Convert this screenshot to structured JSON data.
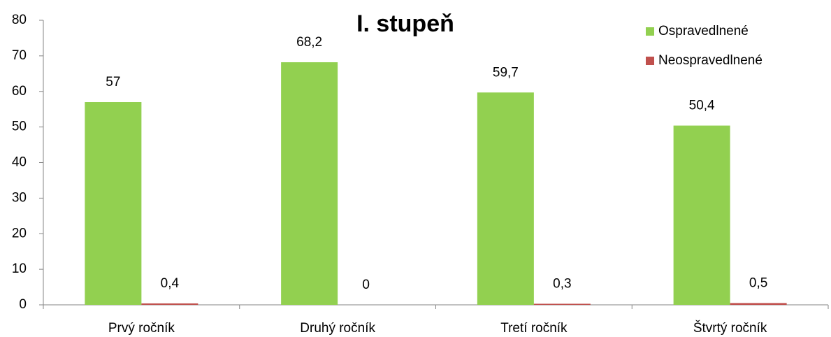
{
  "chart_data": {
    "type": "bar",
    "title": "I. stupeň",
    "categories": [
      "Prvý ročník",
      "Druhý ročník",
      "Tretí ročník",
      "Štvrtý ročník"
    ],
    "series": [
      {
        "name": "Ospravedlnené",
        "color": "#92d050",
        "values": [
          57,
          68.2,
          59.7,
          50.4
        ],
        "value_labels": [
          "57",
          "68,2",
          "59,7",
          "50,4"
        ]
      },
      {
        "name": "Neospravedlnené",
        "color": "#c0504d",
        "values": [
          0.4,
          0,
          0.3,
          0.5
        ],
        "value_labels": [
          "0,4",
          "0",
          "0,3",
          "0,5"
        ]
      }
    ],
    "ylim": [
      0,
      80
    ],
    "yticks": [
      0,
      10,
      20,
      30,
      40,
      50,
      60,
      70,
      80
    ],
    "grid": false,
    "legend": "top-right"
  }
}
